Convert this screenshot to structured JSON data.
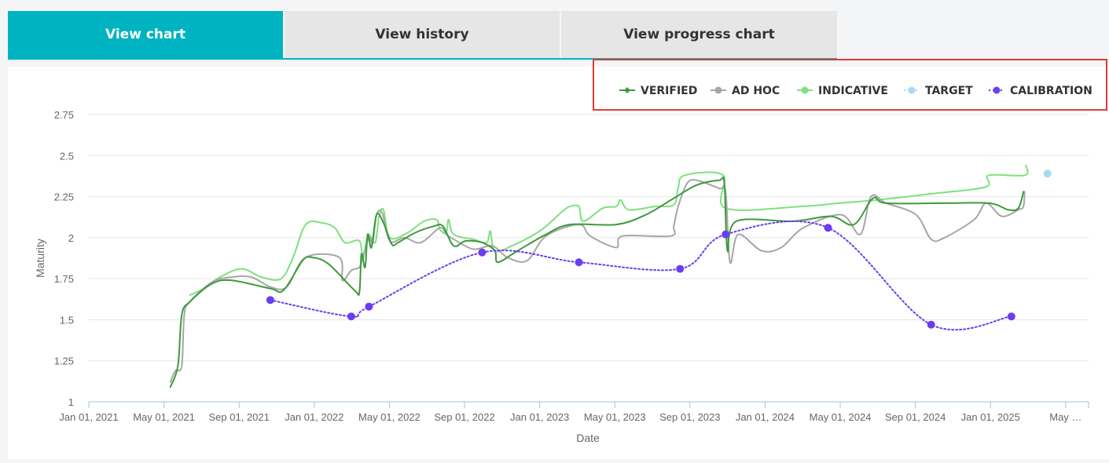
{
  "tabs": [
    {
      "label": "View chart",
      "active": true
    },
    {
      "label": "View history",
      "active": false
    },
    {
      "label": "View progress chart",
      "active": false
    }
  ],
  "colors": {
    "accent": "#00b3c1",
    "verified": "#3d9a3d",
    "adhoc": "#a6a6a6",
    "indicative": "#7fe07f",
    "target": "#a9d8f5",
    "calibration": "#6a3df0",
    "highlight": "#e53935"
  },
  "chart_data": {
    "type": "line",
    "xlabel": "Date",
    "ylabel": "Maturity",
    "ylim": [
      1,
      2.75
    ],
    "yticks": [
      "1",
      "1.25",
      "1.5",
      "1.75",
      "2",
      "2.25",
      "2.5",
      "2.75"
    ],
    "xlim": [
      "2021-01-01",
      "2025-05-01"
    ],
    "xticks": [
      "Jan 01, 2021",
      "May 01, 2021",
      "Sep 01, 2021",
      "Jan 01, 2022",
      "May 01, 2022",
      "Sep 01, 2022",
      "Jan 01, 2023",
      "May 01, 2023",
      "Sep 01, 2023",
      "Jan 01, 2024",
      "May 01, 2024",
      "Sep 01, 2024",
      "Jan 01, 2025",
      "May …"
    ],
    "legend_position": "top-right",
    "grid": true,
    "series": [
      {
        "name": "VERIFIED",
        "key": "verified",
        "style": "line-diamond",
        "points": [
          [
            "2021-05-10",
            1.09
          ],
          [
            "2021-05-22",
            1.22
          ],
          [
            "2021-05-28",
            1.53
          ],
          [
            "2021-06-10",
            1.61
          ],
          [
            "2021-07-15",
            1.72
          ],
          [
            "2021-08-15",
            1.74
          ],
          [
            "2021-10-15",
            1.69
          ],
          [
            "2021-11-05",
            1.68
          ],
          [
            "2021-12-05",
            1.86
          ],
          [
            "2021-12-20",
            1.88
          ],
          [
            "2022-01-15",
            1.84
          ],
          [
            "2022-02-25",
            1.68
          ],
          [
            "2022-03-05",
            1.67
          ],
          [
            "2022-03-08",
            1.9
          ],
          [
            "2022-03-14",
            1.82
          ],
          [
            "2022-03-18",
            2.02
          ],
          [
            "2022-03-24",
            1.94
          ],
          [
            "2022-04-01",
            2.14
          ],
          [
            "2022-04-12",
            2.09
          ],
          [
            "2022-04-25",
            1.96
          ],
          [
            "2022-05-05",
            1.97
          ],
          [
            "2022-06-01",
            2.03
          ],
          [
            "2022-07-01",
            2.07
          ],
          [
            "2022-07-15",
            2.07
          ],
          [
            "2022-08-01",
            1.95
          ],
          [
            "2022-08-20",
            1.98
          ],
          [
            "2022-09-15",
            1.97
          ],
          [
            "2022-10-05",
            1.92
          ],
          [
            "2022-10-10",
            1.85
          ],
          [
            "2022-11-10",
            1.92
          ],
          [
            "2022-12-25",
            2.02
          ],
          [
            "2023-02-01",
            2.08
          ],
          [
            "2023-04-15",
            2.08
          ],
          [
            "2023-06-01",
            2.14
          ],
          [
            "2023-07-15",
            2.24
          ],
          [
            "2023-08-20",
            2.32
          ],
          [
            "2023-09-25",
            2.35
          ],
          [
            "2023-10-03",
            2.33
          ],
          [
            "2023-10-08",
            1.92
          ],
          [
            "2023-10-22",
            2.1
          ],
          [
            "2024-01-20",
            2.1
          ],
          [
            "2024-03-20",
            2.13
          ],
          [
            "2024-04-25",
            2.08
          ],
          [
            "2024-05-25",
            2.24
          ],
          [
            "2024-06-15",
            2.21
          ],
          [
            "2024-09-15",
            2.21
          ],
          [
            "2024-11-25",
            2.21
          ],
          [
            "2024-12-25",
            2.17
          ],
          [
            "2025-01-10",
            2.18
          ],
          [
            "2025-01-18",
            2.28
          ]
        ]
      },
      {
        "name": "AD HOC",
        "key": "adhoc",
        "style": "line-dot",
        "points": [
          [
            "2021-05-10",
            1.12
          ],
          [
            "2021-05-18",
            1.19
          ],
          [
            "2021-05-28",
            1.22
          ],
          [
            "2021-06-01",
            1.53
          ],
          [
            "2021-06-10",
            1.61
          ],
          [
            "2021-07-15",
            1.73
          ],
          [
            "2021-08-15",
            1.76
          ],
          [
            "2021-09-15",
            1.76
          ],
          [
            "2021-10-15",
            1.7
          ],
          [
            "2021-11-10",
            1.7
          ],
          [
            "2021-12-10",
            1.88
          ],
          [
            "2022-02-01",
            1.88
          ],
          [
            "2022-02-06",
            1.74
          ],
          [
            "2022-02-20",
            1.8
          ],
          [
            "2022-03-05",
            1.82
          ],
          [
            "2022-03-10",
            1.88
          ],
          [
            "2022-03-20",
            2.0
          ],
          [
            "2022-03-26",
            1.97
          ],
          [
            "2022-04-01",
            2.14
          ],
          [
            "2022-04-10",
            2.15
          ],
          [
            "2022-04-22",
            1.98
          ],
          [
            "2022-05-15",
            2.0
          ],
          [
            "2022-06-10",
            1.97
          ],
          [
            "2022-07-10",
            2.06
          ],
          [
            "2022-07-20",
            2.02
          ],
          [
            "2022-08-01",
            1.99
          ],
          [
            "2022-09-01",
            1.93
          ],
          [
            "2022-10-01",
            1.95
          ],
          [
            "2022-10-25",
            1.88
          ],
          [
            "2022-11-25",
            1.86
          ],
          [
            "2022-12-25",
            2.01
          ],
          [
            "2023-02-15",
            2.08
          ],
          [
            "2023-03-05",
            2.01
          ],
          [
            "2023-04-15",
            1.94
          ],
          [
            "2023-04-25",
            2.01
          ],
          [
            "2023-07-10",
            2.01
          ],
          [
            "2023-07-15",
            2.07
          ],
          [
            "2023-07-22",
            2.19
          ],
          [
            "2023-08-05",
            2.33
          ],
          [
            "2023-08-20",
            2.35
          ],
          [
            "2023-09-25",
            2.3
          ],
          [
            "2023-10-05",
            2.28
          ],
          [
            "2023-10-12",
            1.85
          ],
          [
            "2023-10-25",
            2.02
          ],
          [
            "2023-12-01",
            1.92
          ],
          [
            "2024-01-01",
            1.94
          ],
          [
            "2024-02-05",
            2.06
          ],
          [
            "2024-04-05",
            2.14
          ],
          [
            "2024-05-05",
            2.02
          ],
          [
            "2024-05-22",
            2.25
          ],
          [
            "2024-06-15",
            2.21
          ],
          [
            "2024-08-01",
            2.14
          ],
          [
            "2024-08-25",
            1.99
          ],
          [
            "2024-09-15",
            2.0
          ],
          [
            "2024-11-01",
            2.11
          ],
          [
            "2024-11-20",
            2.21
          ],
          [
            "2024-12-15",
            2.13
          ],
          [
            "2025-01-10",
            2.17
          ],
          [
            "2025-01-18",
            2.19
          ],
          [
            "2025-01-20",
            2.28
          ]
        ]
      },
      {
        "name": "INDICATIVE",
        "key": "indicative",
        "style": "line-dot",
        "points": [
          [
            "2021-06-10",
            1.65
          ],
          [
            "2021-07-01",
            1.69
          ],
          [
            "2021-08-01",
            1.77
          ],
          [
            "2021-09-01",
            1.81
          ],
          [
            "2021-10-01",
            1.76
          ],
          [
            "2021-11-01",
            1.75
          ],
          [
            "2021-11-20",
            1.88
          ],
          [
            "2021-12-10",
            2.08
          ],
          [
            "2022-01-05",
            2.09
          ],
          [
            "2022-01-25",
            2.06
          ],
          [
            "2022-02-10",
            1.97
          ],
          [
            "2022-03-05",
            1.98
          ],
          [
            "2022-03-10",
            1.86
          ],
          [
            "2022-03-15",
            1.96
          ],
          [
            "2022-03-20",
            2.02
          ],
          [
            "2022-03-30",
            1.97
          ],
          [
            "2022-04-05",
            2.13
          ],
          [
            "2022-04-12",
            2.17
          ],
          [
            "2022-04-22",
            2.0
          ],
          [
            "2022-05-20",
            2.03
          ],
          [
            "2022-06-15",
            2.1
          ],
          [
            "2022-07-05",
            2.11
          ],
          [
            "2022-07-10",
            2.05
          ],
          [
            "2022-07-20",
            2.03
          ],
          [
            "2022-07-24",
            2.11
          ],
          [
            "2022-08-01",
            2.02
          ],
          [
            "2022-09-01",
            1.99
          ],
          [
            "2022-09-22",
            1.97
          ],
          [
            "2022-09-28",
            2.04
          ],
          [
            "2022-10-05",
            1.92
          ],
          [
            "2022-11-01",
            1.95
          ],
          [
            "2022-12-15",
            2.04
          ],
          [
            "2023-01-20",
            2.16
          ],
          [
            "2023-02-01",
            2.19
          ],
          [
            "2023-02-15",
            2.19
          ],
          [
            "2023-02-22",
            2.1
          ],
          [
            "2023-03-25",
            2.18
          ],
          [
            "2023-04-15",
            2.19
          ],
          [
            "2023-04-22",
            2.23
          ],
          [
            "2023-05-05",
            2.17
          ],
          [
            "2023-06-15",
            2.19
          ],
          [
            "2023-07-15",
            2.2
          ],
          [
            "2023-07-22",
            2.3
          ],
          [
            "2023-08-01",
            2.38
          ],
          [
            "2023-10-01",
            2.38
          ],
          [
            "2023-10-05",
            2.18
          ],
          [
            "2024-02-01",
            2.19
          ],
          [
            "2024-04-01",
            2.21
          ],
          [
            "2024-06-01",
            2.23
          ],
          [
            "2024-09-01",
            2.27
          ],
          [
            "2024-11-20",
            2.31
          ],
          [
            "2024-11-24",
            2.38
          ],
          [
            "2025-01-20",
            2.38
          ],
          [
            "2025-01-22",
            2.44
          ]
        ]
      },
      {
        "name": "TARGET",
        "key": "target",
        "style": "dot",
        "points": [
          [
            "2025-02-25",
            2.39
          ]
        ]
      },
      {
        "name": "CALIBRATION",
        "key": "calibration",
        "style": "dotted-dot",
        "points": [
          [
            "2021-10-15",
            1.62
          ],
          [
            "2022-02-20",
            1.52
          ],
          [
            "2022-03-20",
            1.58
          ],
          [
            "2022-09-15",
            1.91
          ],
          [
            "2023-02-15",
            1.85
          ],
          [
            "2023-07-25",
            1.81
          ],
          [
            "2023-10-05",
            2.02
          ],
          [
            "2024-03-15",
            2.06
          ],
          [
            "2024-08-25",
            1.47
          ],
          [
            "2024-12-30",
            1.52
          ]
        ]
      }
    ]
  }
}
